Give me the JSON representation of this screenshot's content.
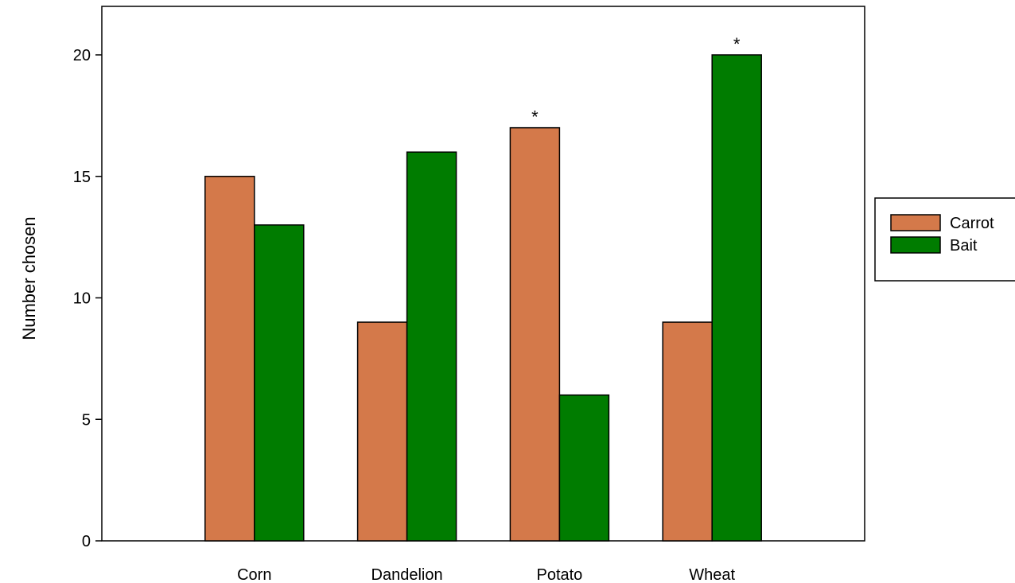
{
  "chart_data": {
    "type": "bar",
    "title": "",
    "xlabel": "",
    "ylabel": "Number chosen",
    "categories": [
      "Corn",
      "Dandelion",
      "Potato",
      "Wheat"
    ],
    "series": [
      {
        "name": "Carrot",
        "color": "#d4794a",
        "values": [
          15,
          9,
          17,
          9
        ]
      },
      {
        "name": "Bait",
        "color": "#007c00",
        "values": [
          13,
          16,
          6,
          20
        ]
      }
    ],
    "ylim": [
      0,
      20
    ],
    "yticks": [
      0,
      5,
      10,
      15,
      20
    ],
    "significance": [
      {
        "category": "Potato",
        "series": "Carrot",
        "label": "*"
      },
      {
        "category": "Wheat",
        "series": "Bait",
        "label": "*"
      }
    ],
    "grid": false,
    "legend_position": "right"
  }
}
